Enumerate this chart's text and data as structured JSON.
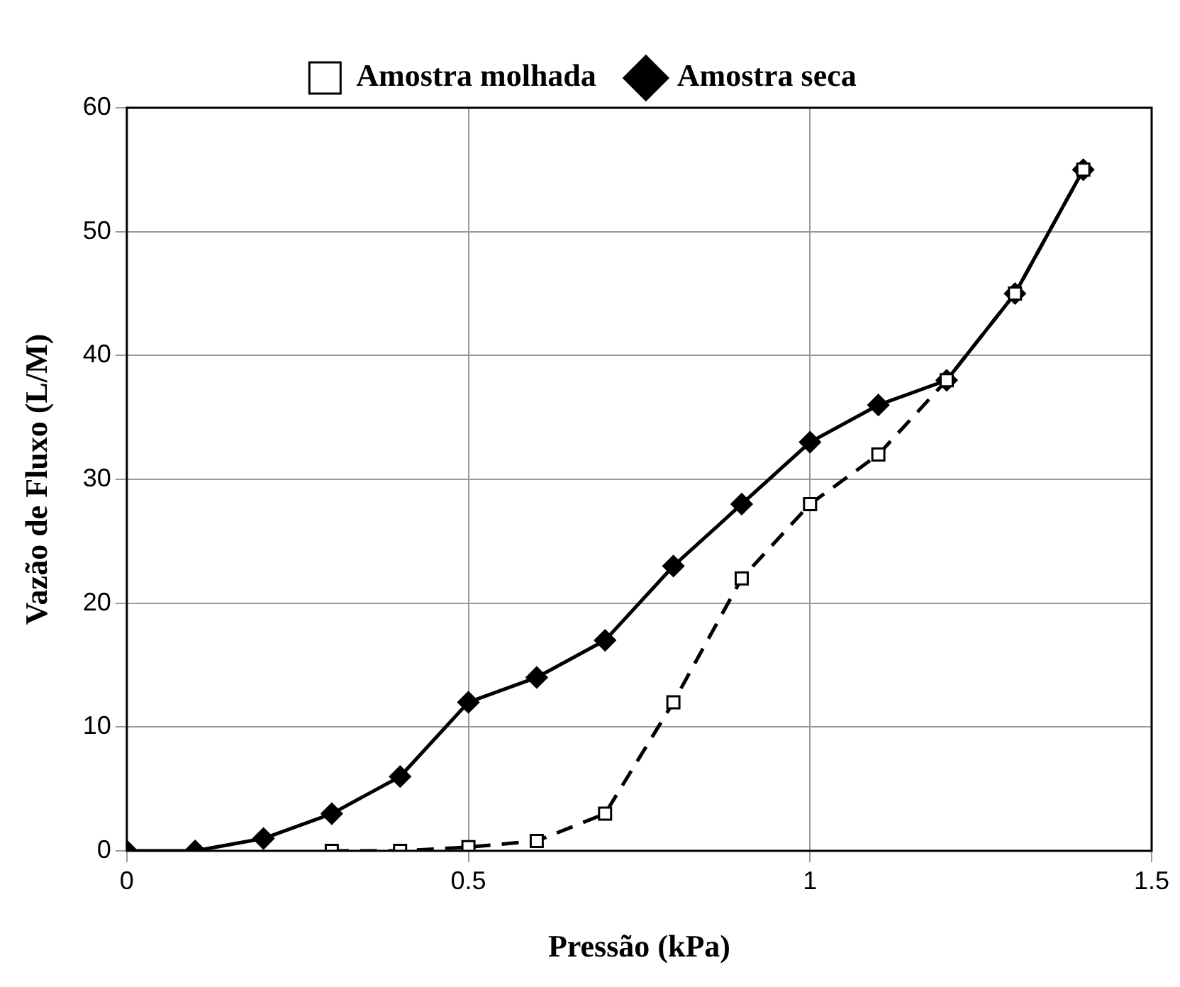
{
  "chart_data": {
    "type": "line",
    "xlabel": "Pressão (kPa)",
    "ylabel": "Vazão de Fluxo (L/M)",
    "xlim": [
      0,
      1.5
    ],
    "xticks": [
      0,
      0.5,
      1,
      1.5
    ],
    "ylim": [
      0,
      60
    ],
    "yticks": [
      0,
      10,
      20,
      30,
      40,
      50,
      60
    ],
    "grid": true,
    "legend": "top",
    "series": [
      {
        "name": "Amostra molhada",
        "color": "#000000",
        "marker": "square",
        "line_style": "dashed",
        "x": [
          0.3,
          0.4,
          0.5,
          0.6,
          0.7,
          0.8,
          0.9,
          1.0,
          1.1,
          1.2,
          1.3,
          1.4
        ],
        "values": [
          0,
          0,
          0.3,
          0.8,
          3,
          12,
          22,
          28,
          32,
          38,
          45,
          55
        ]
      },
      {
        "name": "Amostra seca",
        "color": "#000000",
        "marker": "diamond",
        "line_style": "solid",
        "x": [
          0,
          0.1,
          0.2,
          0.3,
          0.4,
          0.5,
          0.6,
          0.7,
          0.8,
          0.9,
          1.0,
          1.1,
          1.2,
          1.3,
          1.4
        ],
        "values": [
          0,
          0,
          1,
          3,
          6,
          12,
          14,
          17,
          23,
          28,
          33,
          36,
          38,
          45,
          55
        ]
      }
    ]
  }
}
